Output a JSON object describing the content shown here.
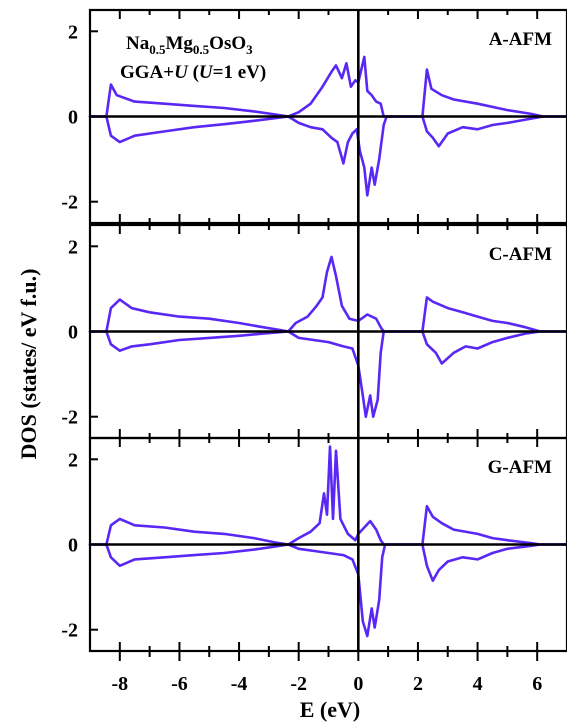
{
  "chart_data": {
    "type": "line",
    "title_line1": {
      "pre": "Na",
      "sub1": "0.5",
      "mid": "Mg",
      "sub2": "0.5",
      "mid2": "OsO",
      "sub3": "3"
    },
    "title_line2": {
      "pre": "GGA+",
      "u1": "U",
      "mid": " (",
      "u2": "U",
      "post": "=1 eV)"
    },
    "xlabel": "E (eV)",
    "ylabel": "DOS (states/ eV f.u.)",
    "xlim": [
      -9,
      7
    ],
    "xticks": [
      -8,
      -6,
      -4,
      -2,
      0,
      2,
      4,
      6
    ],
    "xtick_labels": [
      "-8",
      "-6",
      "-4",
      "-2",
      "0",
      "2",
      "4",
      "6"
    ],
    "ylim": [
      -2.5,
      2.5
    ],
    "yticks": [
      -2,
      0,
      2
    ],
    "ytick_labels": [
      "-2",
      "0",
      "2"
    ],
    "line_color": "#5a28f5",
    "panels": [
      {
        "label": "A-AFM",
        "up": [
          [
            -9,
            0
          ],
          [
            -8.45,
            0
          ],
          [
            -8.3,
            0.75
          ],
          [
            -8.1,
            0.5
          ],
          [
            -7.5,
            0.35
          ],
          [
            -6.5,
            0.3
          ],
          [
            -5.5,
            0.25
          ],
          [
            -4.5,
            0.2
          ],
          [
            -3.5,
            0.12
          ],
          [
            -2.8,
            0.05
          ],
          [
            -2.35,
            0
          ],
          [
            -2,
            0.1
          ],
          [
            -1.6,
            0.3
          ],
          [
            -1.2,
            0.7
          ],
          [
            -0.9,
            1.05
          ],
          [
            -0.75,
            1.2
          ],
          [
            -0.55,
            0.9
          ],
          [
            -0.4,
            1.25
          ],
          [
            -0.25,
            0.7
          ],
          [
            -0.1,
            0.85
          ],
          [
            0,
            0.8
          ],
          [
            0.1,
            1.1
          ],
          [
            0.2,
            1.4
          ],
          [
            0.3,
            0.6
          ],
          [
            0.45,
            0.5
          ],
          [
            0.6,
            0.35
          ],
          [
            0.75,
            0.3
          ],
          [
            0.85,
            0
          ],
          [
            2.15,
            0
          ],
          [
            2.3,
            1.1
          ],
          [
            2.45,
            0.65
          ],
          [
            2.8,
            0.5
          ],
          [
            3.2,
            0.4
          ],
          [
            4,
            0.3
          ],
          [
            5,
            0.15
          ],
          [
            5.8,
            0.06
          ],
          [
            6.2,
            0
          ],
          [
            7,
            0
          ]
        ],
        "down": [
          [
            -9,
            0
          ],
          [
            -8.45,
            0
          ],
          [
            -8.3,
            -0.45
          ],
          [
            -8,
            -0.6
          ],
          [
            -7.5,
            -0.45
          ],
          [
            -6.5,
            -0.35
          ],
          [
            -5.5,
            -0.25
          ],
          [
            -4.5,
            -0.18
          ],
          [
            -3.5,
            -0.1
          ],
          [
            -2.8,
            -0.04
          ],
          [
            -2.35,
            0
          ],
          [
            -2,
            -0.15
          ],
          [
            -1.6,
            -0.25
          ],
          [
            -1.2,
            -0.3
          ],
          [
            -0.9,
            -0.5
          ],
          [
            -0.7,
            -0.6
          ],
          [
            -0.5,
            -1.1
          ],
          [
            -0.35,
            -0.6
          ],
          [
            -0.2,
            -0.4
          ],
          [
            -0.05,
            -0.3
          ],
          [
            0.05,
            -0.8
          ],
          [
            0.2,
            -1.2
          ],
          [
            0.3,
            -1.85
          ],
          [
            0.45,
            -1.2
          ],
          [
            0.55,
            -1.6
          ],
          [
            0.7,
            -1.0
          ],
          [
            0.85,
            -0.2
          ],
          [
            0.95,
            0
          ],
          [
            2.15,
            0
          ],
          [
            2.3,
            -0.35
          ],
          [
            2.5,
            -0.5
          ],
          [
            2.7,
            -0.7
          ],
          [
            3,
            -0.4
          ],
          [
            3.5,
            -0.25
          ],
          [
            4,
            -0.3
          ],
          [
            4.5,
            -0.2
          ],
          [
            5,
            -0.15
          ],
          [
            5.8,
            -0.05
          ],
          [
            6.2,
            0
          ],
          [
            7,
            0
          ]
        ]
      },
      {
        "label": "C-AFM",
        "up": [
          [
            -9,
            0
          ],
          [
            -8.45,
            0
          ],
          [
            -8.3,
            0.55
          ],
          [
            -8,
            0.75
          ],
          [
            -7.6,
            0.55
          ],
          [
            -7,
            0.45
          ],
          [
            -6,
            0.35
          ],
          [
            -5,
            0.3
          ],
          [
            -4,
            0.2
          ],
          [
            -3.2,
            0.1
          ],
          [
            -2.6,
            0.03
          ],
          [
            -2.35,
            0
          ],
          [
            -2.1,
            0.2
          ],
          [
            -1.7,
            0.35
          ],
          [
            -1.4,
            0.6
          ],
          [
            -1.2,
            0.8
          ],
          [
            -1.05,
            1.4
          ],
          [
            -0.9,
            1.75
          ],
          [
            -0.75,
            1.3
          ],
          [
            -0.55,
            0.6
          ],
          [
            -0.3,
            0.3
          ],
          [
            0,
            0.25
          ],
          [
            0.3,
            0.4
          ],
          [
            0.6,
            0.3
          ],
          [
            0.75,
            0.1
          ],
          [
            0.85,
            0
          ],
          [
            2.15,
            0
          ],
          [
            2.3,
            0.8
          ],
          [
            2.5,
            0.7
          ],
          [
            3,
            0.55
          ],
          [
            3.5,
            0.45
          ],
          [
            4,
            0.35
          ],
          [
            4.5,
            0.25
          ],
          [
            5,
            0.2
          ],
          [
            5.6,
            0.1
          ],
          [
            6.1,
            0
          ],
          [
            7,
            0
          ]
        ],
        "down": [
          [
            -9,
            0
          ],
          [
            -8.45,
            0
          ],
          [
            -8.3,
            -0.3
          ],
          [
            -8,
            -0.45
          ],
          [
            -7.6,
            -0.35
          ],
          [
            -7,
            -0.3
          ],
          [
            -6,
            -0.2
          ],
          [
            -5,
            -0.15
          ],
          [
            -4,
            -0.1
          ],
          [
            -3.2,
            -0.05
          ],
          [
            -2.35,
            0
          ],
          [
            -2,
            -0.15
          ],
          [
            -1.5,
            -0.2
          ],
          [
            -1,
            -0.25
          ],
          [
            -0.5,
            -0.35
          ],
          [
            -0.2,
            -0.4
          ],
          [
            0,
            -0.8
          ],
          [
            0.15,
            -1.5
          ],
          [
            0.25,
            -2.0
          ],
          [
            0.4,
            -1.5
          ],
          [
            0.5,
            -2.0
          ],
          [
            0.65,
            -1.6
          ],
          [
            0.75,
            -0.5
          ],
          [
            0.85,
            0
          ],
          [
            2.15,
            0
          ],
          [
            2.3,
            -0.3
          ],
          [
            2.6,
            -0.5
          ],
          [
            2.8,
            -0.75
          ],
          [
            3.2,
            -0.5
          ],
          [
            3.6,
            -0.35
          ],
          [
            4,
            -0.4
          ],
          [
            4.5,
            -0.25
          ],
          [
            5,
            -0.15
          ],
          [
            5.6,
            -0.05
          ],
          [
            6.1,
            0
          ],
          [
            7,
            0
          ]
        ]
      },
      {
        "label": "G-AFM",
        "up": [
          [
            -9,
            0
          ],
          [
            -8.45,
            0
          ],
          [
            -8.3,
            0.45
          ],
          [
            -8,
            0.6
          ],
          [
            -7.5,
            0.45
          ],
          [
            -6.5,
            0.4
          ],
          [
            -5.5,
            0.3
          ],
          [
            -4.5,
            0.25
          ],
          [
            -3.5,
            0.15
          ],
          [
            -2.8,
            0.05
          ],
          [
            -2.35,
            0
          ],
          [
            -2,
            0.15
          ],
          [
            -1.6,
            0.3
          ],
          [
            -1.3,
            0.5
          ],
          [
            -1.15,
            1.2
          ],
          [
            -1.05,
            0.7
          ],
          [
            -0.95,
            2.3
          ],
          [
            -0.85,
            0.6
          ],
          [
            -0.75,
            2.2
          ],
          [
            -0.6,
            0.6
          ],
          [
            -0.35,
            0.25
          ],
          [
            -0.1,
            0.1
          ],
          [
            0,
            0.25
          ],
          [
            0.2,
            0.4
          ],
          [
            0.4,
            0.55
          ],
          [
            0.6,
            0.35
          ],
          [
            0.75,
            0.1
          ],
          [
            0.85,
            0
          ],
          [
            2.15,
            0
          ],
          [
            2.3,
            0.9
          ],
          [
            2.5,
            0.65
          ],
          [
            2.8,
            0.5
          ],
          [
            3.2,
            0.35
          ],
          [
            4,
            0.25
          ],
          [
            4.5,
            0.15
          ],
          [
            5,
            0.1
          ],
          [
            5.8,
            0.03
          ],
          [
            6.1,
            0
          ],
          [
            7,
            0
          ]
        ],
        "down": [
          [
            -9,
            0
          ],
          [
            -8.45,
            0
          ],
          [
            -8.3,
            -0.3
          ],
          [
            -8,
            -0.5
          ],
          [
            -7.5,
            -0.35
          ],
          [
            -6.5,
            -0.3
          ],
          [
            -5.5,
            -0.25
          ],
          [
            -4.5,
            -0.2
          ],
          [
            -3.5,
            -0.12
          ],
          [
            -2.8,
            -0.05
          ],
          [
            -2.35,
            0
          ],
          [
            -2,
            -0.1
          ],
          [
            -1.5,
            -0.15
          ],
          [
            -1,
            -0.2
          ],
          [
            -0.5,
            -0.25
          ],
          [
            -0.2,
            -0.35
          ],
          [
            0,
            -0.7
          ],
          [
            0.15,
            -1.8
          ],
          [
            0.3,
            -2.15
          ],
          [
            0.45,
            -1.5
          ],
          [
            0.55,
            -1.95
          ],
          [
            0.7,
            -1.3
          ],
          [
            0.8,
            -0.3
          ],
          [
            0.9,
            0
          ],
          [
            2.15,
            0
          ],
          [
            2.3,
            -0.5
          ],
          [
            2.5,
            -0.85
          ],
          [
            2.7,
            -0.6
          ],
          [
            3,
            -0.4
          ],
          [
            3.5,
            -0.3
          ],
          [
            4,
            -0.35
          ],
          [
            4.5,
            -0.2
          ],
          [
            5,
            -0.1
          ],
          [
            5.8,
            -0.03
          ],
          [
            6.1,
            0
          ],
          [
            7,
            0
          ]
        ]
      }
    ]
  }
}
